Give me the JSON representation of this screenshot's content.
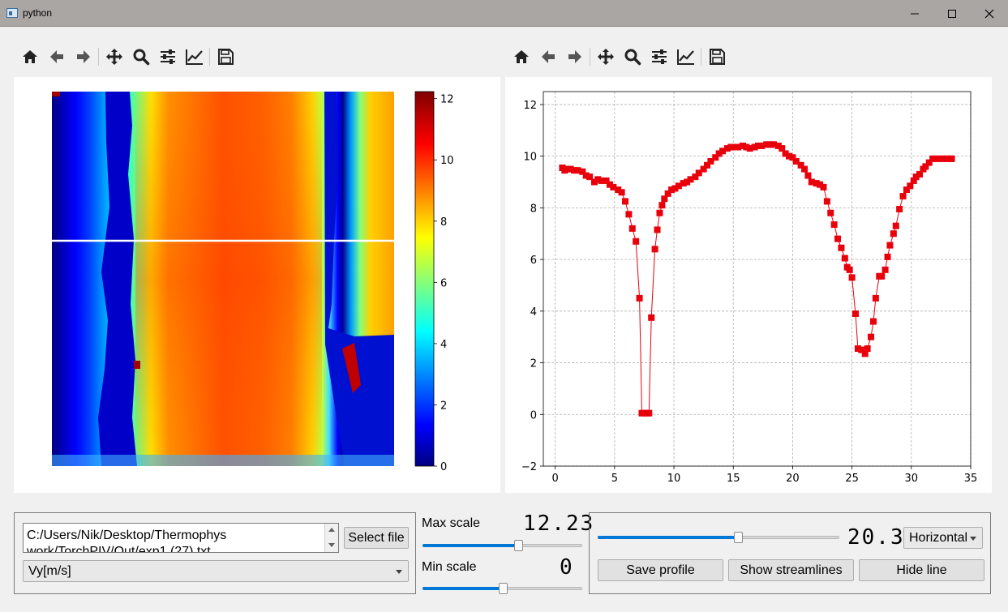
{
  "window": {
    "title": "python"
  },
  "left_toolbar": [
    "home-icon",
    "back-icon",
    "forward-icon",
    "pan-icon",
    "zoom-icon",
    "configure-icon",
    "edit-axis-icon",
    "save-icon"
  ],
  "right_toolbar": [
    "home-icon",
    "back-icon",
    "forward-icon",
    "pan-icon",
    "zoom-icon",
    "configure-icon",
    "edit-axis-icon",
    "save-icon"
  ],
  "heatmap": {
    "colormap": "jet",
    "colorbar_ticks": [
      "0",
      "2",
      "4",
      "6",
      "8",
      "10",
      "12"
    ],
    "colorbar_range": [
      0,
      12.23
    ],
    "profile_line": "horizontal"
  },
  "file_panel": {
    "path_text": "C:/Users/Nik/Desktop/Thermophys work/TorchPIV/Out/exp1 (27).txt",
    "select_file_label": "Select file",
    "field_select": "Vy[m/s]"
  },
  "scale_panel": {
    "max_label": "Max scale",
    "max_value": "12.23",
    "max_slider_fraction": 0.6,
    "min_label": "Min scale",
    "min_value": "0",
    "min_slider_fraction": 0.5
  },
  "profile_panel": {
    "position_value": "20.34",
    "slider_fraction": 0.58,
    "orientation": "Horizontal",
    "save_profile_label": "Save profile",
    "show_streamlines_label": "Show streamlines",
    "hide_line_label": "Hide line"
  },
  "chart_data": {
    "type": "line",
    "title": "",
    "xlabel": "",
    "ylabel": "",
    "xlim": [
      -1,
      35
    ],
    "ylim": [
      -2,
      12.5
    ],
    "xticks": [
      0,
      5,
      10,
      15,
      20,
      25,
      30,
      35
    ],
    "yticks": [
      -2,
      0,
      2,
      4,
      6,
      8,
      10,
      12
    ],
    "grid": true,
    "marker": "square",
    "color": "#e8000b",
    "series": [
      {
        "x": [
          0.6,
          0.8,
          1.0,
          1.3,
          1.6,
          1.9,
          2.3,
          2.6,
          2.9,
          3.3,
          3.6,
          3.9,
          4.3,
          4.6,
          4.9,
          5.3,
          5.6,
          5.9,
          6.2,
          6.5,
          6.8,
          7.1,
          7.3,
          7.5,
          7.7,
          7.9,
          8.1,
          8.4,
          8.6,
          8.8,
          9.0,
          9.2,
          9.5,
          9.8,
          10.1,
          10.4,
          10.8,
          11.1,
          11.4,
          11.8,
          12.1,
          12.5,
          12.8,
          13.1,
          13.5,
          13.8,
          14.1,
          14.5,
          14.8,
          15.1,
          15.4,
          15.8,
          16.1,
          16.4,
          16.8,
          17.1,
          17.4,
          17.8,
          18.1,
          18.4,
          18.8,
          19.1,
          19.4,
          19.7,
          20.0,
          20.3,
          20.7,
          21.0,
          21.3,
          21.6,
          22.0,
          22.3,
          22.6,
          22.9,
          23.2,
          23.5,
          23.8,
          24.1,
          24.4,
          24.6,
          24.8,
          25.0,
          25.3,
          25.5,
          25.8,
          26.1,
          26.3,
          26.6,
          26.8,
          27.0,
          27.3,
          27.5,
          27.8,
          28.0,
          28.2,
          28.5,
          28.7,
          29.0,
          29.3,
          29.6,
          29.9,
          30.2,
          30.4,
          30.7,
          31.0,
          31.2,
          31.5,
          31.8,
          32.1,
          32.4,
          32.7,
          33.0,
          33.3,
          33.4
        ],
        "y": [
          9.55,
          9.45,
          9.5,
          9.5,
          9.45,
          9.45,
          9.4,
          9.25,
          9.2,
          9.0,
          9.1,
          9.05,
          9.05,
          8.9,
          8.8,
          8.7,
          8.6,
          8.25,
          7.75,
          7.2,
          6.7,
          4.5,
          0.05,
          0.05,
          0.05,
          0.05,
          3.75,
          6.4,
          7.15,
          7.8,
          8.1,
          8.35,
          8.55,
          8.7,
          8.75,
          8.85,
          8.95,
          9.0,
          9.1,
          9.2,
          9.35,
          9.5,
          9.65,
          9.8,
          9.95,
          10.1,
          10.2,
          10.3,
          10.35,
          10.35,
          10.35,
          10.4,
          10.35,
          10.3,
          10.35,
          10.4,
          10.4,
          10.45,
          10.45,
          10.45,
          10.4,
          10.3,
          10.1,
          10.0,
          9.95,
          9.8,
          9.65,
          9.5,
          9.25,
          9.0,
          8.95,
          8.9,
          8.8,
          8.25,
          7.8,
          7.35,
          6.8,
          6.45,
          6.05,
          5.7,
          5.6,
          5.3,
          3.9,
          2.55,
          2.5,
          2.35,
          2.55,
          3.0,
          3.6,
          4.5,
          5.35,
          5.35,
          5.6,
          6.1,
          6.55,
          7.0,
          7.3,
          7.95,
          8.45,
          8.7,
          8.85,
          9.05,
          9.2,
          9.3,
          9.5,
          9.6,
          9.75,
          9.9,
          9.9,
          9.9,
          9.9,
          9.9,
          9.9,
          9.9
        ]
      }
    ]
  }
}
